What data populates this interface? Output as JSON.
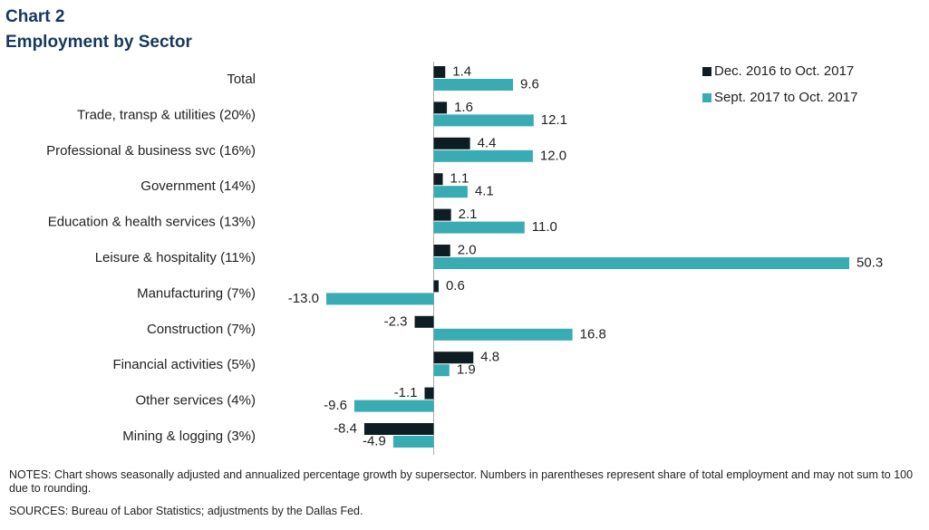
{
  "chart_data": {
    "type": "hbar",
    "title": "Chart 2",
    "subtitle": "Employment  by Sector",
    "categories": [
      "Total",
      "Trade, transp & utilities (20%)",
      "Professional & business svc (16%)",
      "Government (14%)",
      "Education & health services (13%)",
      "Leisure & hospitality (11%)",
      "Manufacturing (7%)",
      "Construction (7%)",
      "Financial activities (5%)",
      "Other services (4%)",
      "Mining & logging (3%)"
    ],
    "series": [
      {
        "name": "Dec. 2016 to Oct. 2017",
        "color": "#0e1d24",
        "values": [
          1.4,
          1.6,
          4.4,
          1.1,
          2.1,
          2.0,
          0.6,
          -2.3,
          4.8,
          -1.1,
          -8.4
        ],
        "value_labels": [
          "1.4",
          "1.6",
          "4.4",
          "1.1",
          "2.1",
          "2.0",
          "0.6",
          "-2.3",
          "4.8",
          "-1.1",
          "-8.4"
        ]
      },
      {
        "name": "Sept. 2017 to Oct. 2017",
        "color": "#38abb3",
        "values": [
          9.6,
          12.1,
          12.0,
          4.1,
          11.0,
          50.3,
          -13.0,
          16.8,
          1.9,
          -9.6,
          -4.9
        ],
        "value_labels": [
          "9.6",
          "12.1",
          "12.0",
          "4.1",
          "11.0",
          "50.3",
          "-13.0",
          "16.8",
          "1.9",
          "-9.6",
          "-4.9"
        ]
      }
    ],
    "legend": "top-right",
    "notes": "NOTES:  Chart shows seasonally adjusted and annualized percentage growth by supersector. Numbers in parentheses represent share of total employment and may not sum to 100 due to rounding.",
    "sources": "SOURCES:  Bureau of Labor Statistics; adjustments by the Dallas Fed."
  }
}
